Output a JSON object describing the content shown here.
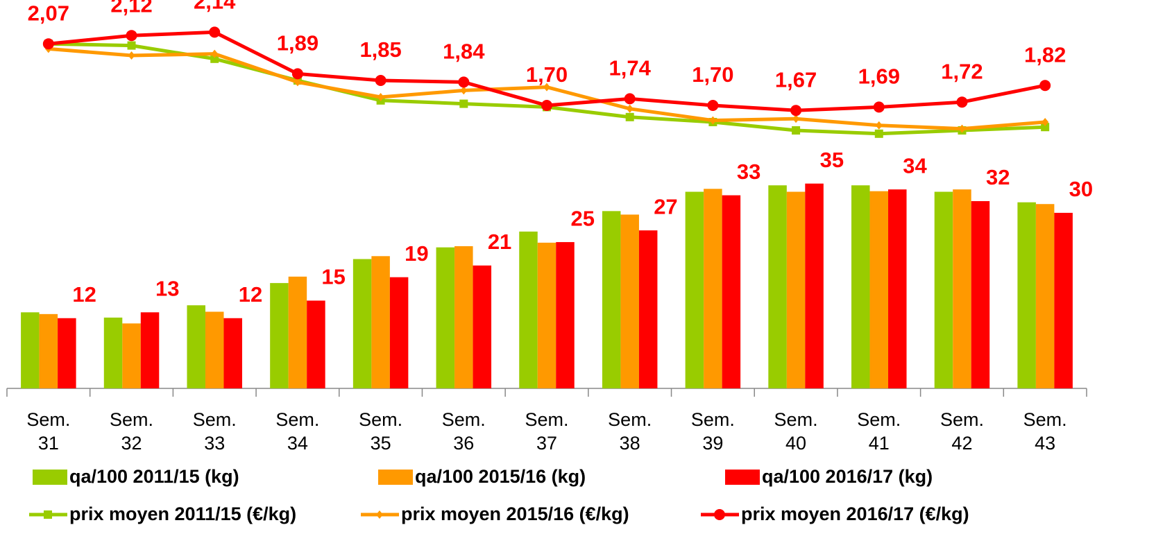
{
  "chart_data": {
    "type": "bar",
    "categories": [
      "Sem. 31",
      "Sem. 32",
      "Sem. 33",
      "Sem. 34",
      "Sem. 35",
      "Sem. 36",
      "Sem. 37",
      "Sem. 38",
      "Sem. 39",
      "Sem. 40",
      "Sem. 41",
      "Sem. 42",
      "Sem. 43"
    ],
    "ylim": [
      0,
      64
    ],
    "y2lim": [
      0,
      2.25
    ],
    "series": [
      {
        "name": "qa/100 2011/15 (kg)",
        "type": "bar",
        "color": "#99cc00",
        "values": [
          13.0,
          12.1,
          14.2,
          18.0,
          22.1,
          24.1,
          26.8,
          30.3,
          33.6,
          34.7,
          34.7,
          33.6,
          31.8
        ]
      },
      {
        "name": "qa/100 2015/16 (kg)",
        "type": "bar",
        "color": "#ff9900",
        "values": [
          12.7,
          11.1,
          13.1,
          19.1,
          22.6,
          24.3,
          24.9,
          29.7,
          34.1,
          33.6,
          33.7,
          34.0,
          31.5
        ]
      },
      {
        "name": "qa/100 2016/17 (kg)",
        "type": "bar",
        "color": "#ff0000",
        "values": [
          12,
          13,
          12,
          15,
          19,
          21,
          25,
          27,
          33,
          35,
          34,
          32,
          30
        ],
        "labels": true
      },
      {
        "name": "prix moyen 2011/15 (€/kg)",
        "type": "line",
        "axis": "y2",
        "marker": "square",
        "color": "#99cc00",
        "values": [
          2.07,
          2.06,
          1.98,
          1.85,
          1.73,
          1.71,
          1.69,
          1.63,
          1.6,
          1.55,
          1.53,
          1.55,
          1.57
        ]
      },
      {
        "name": "prix moyen 2015/16 (€/kg)",
        "type": "line",
        "axis": "y2",
        "marker": "diamond",
        "color": "#ff9900",
        "values": [
          2.04,
          2.0,
          2.01,
          1.84,
          1.75,
          1.79,
          1.81,
          1.68,
          1.61,
          1.62,
          1.58,
          1.56,
          1.6
        ]
      },
      {
        "name": "prix moyen 2016/17 (€/kg)",
        "type": "line",
        "axis": "y2",
        "marker": "circle",
        "color": "#ff0000",
        "labels": true,
        "values": [
          2.07,
          2.12,
          2.14,
          1.89,
          1.85,
          1.84,
          1.7,
          1.74,
          1.7,
          1.67,
          1.69,
          1.72,
          1.82
        ],
        "value_labels": [
          "2,07",
          "2,12",
          "2,14",
          "1,89",
          "1,85",
          "1,84",
          "1,70",
          "1,74",
          "1,70",
          "1,67",
          "1,69",
          "1,72",
          "1,82"
        ]
      }
    ]
  }
}
